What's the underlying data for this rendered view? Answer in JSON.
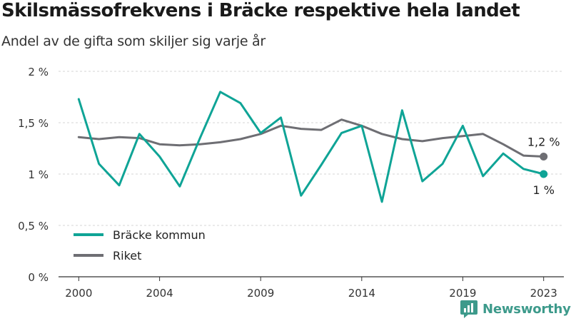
{
  "title": "Skilsmässofrekvens i Bräcke respektive hela landet",
  "subtitle": "Andel av de gifta som skiljer sig varje år",
  "brand": "Newsworthy",
  "colors": {
    "brand": "#3d9a8b"
  },
  "chart_data": {
    "type": "line",
    "x": [
      2000,
      2001,
      2002,
      2003,
      2004,
      2005,
      2006,
      2007,
      2008,
      2009,
      2010,
      2011,
      2012,
      2013,
      2014,
      2015,
      2016,
      2017,
      2018,
      2019,
      2020,
      2021,
      2022,
      2023
    ],
    "xticks": [
      2000,
      2004,
      2009,
      2014,
      2019,
      2023
    ],
    "xlim": [
      1999,
      2024
    ],
    "ylim": [
      0,
      2
    ],
    "yticks": [
      0,
      0.5,
      1,
      1.5,
      2
    ],
    "ytick_labels": [
      "0 %",
      "0,5 %",
      "1 %",
      "1,5 %",
      "2 %"
    ],
    "grid": true,
    "legend_position": "bottom-left",
    "series": [
      {
        "name": "Bräcke kommun",
        "color": "#0fa496",
        "values": [
          1.73,
          1.1,
          0.89,
          1.39,
          1.17,
          0.88,
          1.35,
          1.8,
          1.69,
          1.4,
          1.55,
          0.79,
          1.09,
          1.4,
          1.47,
          0.73,
          1.62,
          0.93,
          1.1,
          1.47,
          0.98,
          1.2,
          1.05,
          1.0
        ],
        "end_label": "1 %"
      },
      {
        "name": "Riket",
        "color": "#6e6e73",
        "values": [
          1.36,
          1.34,
          1.36,
          1.35,
          1.29,
          1.28,
          1.29,
          1.31,
          1.34,
          1.39,
          1.47,
          1.44,
          1.43,
          1.53,
          1.47,
          1.39,
          1.34,
          1.32,
          1.35,
          1.37,
          1.39,
          1.29,
          1.18,
          1.17
        ],
        "end_label": "1,2 %"
      }
    ]
  }
}
